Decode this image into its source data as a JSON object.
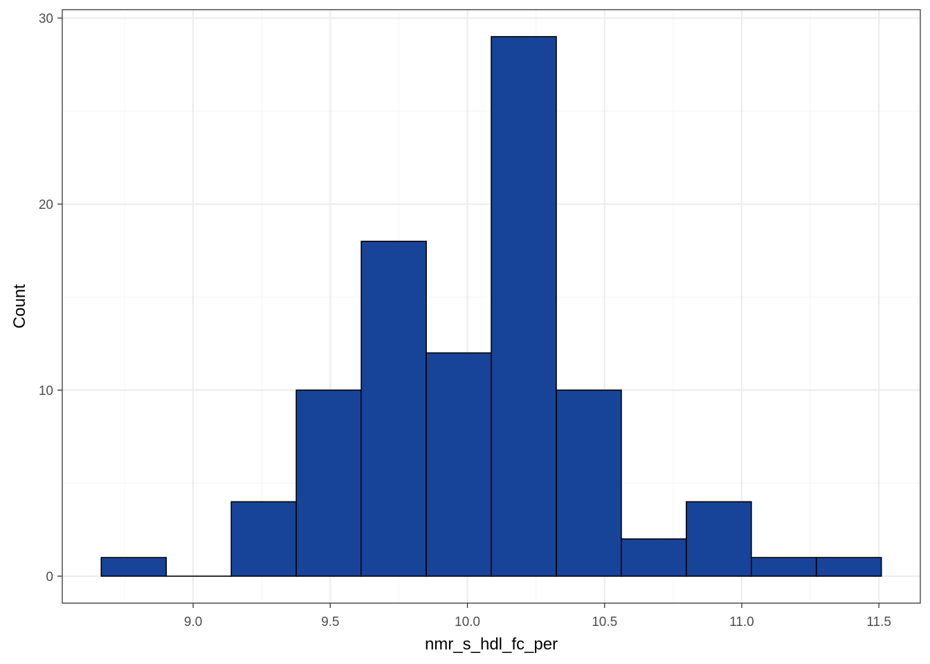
{
  "chart_data": {
    "type": "bar",
    "subtype": "histogram",
    "title": "",
    "xlabel": "nmr_s_hdl_fc_per",
    "ylabel": "Count",
    "bins": [
      {
        "x0": 8.665,
        "x1": 8.902,
        "count": 1
      },
      {
        "x0": 8.902,
        "x1": 9.139,
        "count": 0
      },
      {
        "x0": 9.139,
        "x1": 9.376,
        "count": 4
      },
      {
        "x0": 9.376,
        "x1": 9.613,
        "count": 10
      },
      {
        "x0": 9.613,
        "x1": 9.85,
        "count": 18
      },
      {
        "x0": 9.85,
        "x1": 10.087,
        "count": 12
      },
      {
        "x0": 10.087,
        "x1": 10.324,
        "count": 29
      },
      {
        "x0": 10.324,
        "x1": 10.561,
        "count": 10
      },
      {
        "x0": 10.561,
        "x1": 10.798,
        "count": 2
      },
      {
        "x0": 10.798,
        "x1": 11.035,
        "count": 4
      },
      {
        "x0": 11.035,
        "x1": 11.272,
        "count": 1
      },
      {
        "x0": 11.272,
        "x1": 11.509,
        "count": 1
      }
    ],
    "xlim": [
      8.523,
      11.651
    ],
    "ylim": [
      -1.45,
      30.45
    ],
    "x_ticks": [
      9.0,
      9.5,
      10.0,
      10.5,
      11.0,
      11.5
    ],
    "x_tick_labels": [
      "9.0",
      "9.5",
      "10.0",
      "10.5",
      "11.0",
      "11.5"
    ],
    "x_minor_ticks": [
      8.75,
      9.25,
      9.75,
      10.25,
      10.75,
      11.25
    ],
    "y_ticks": [
      0,
      10,
      20,
      30
    ],
    "y_tick_labels": [
      "0",
      "10",
      "20",
      "30"
    ],
    "y_minor_ticks": [
      5,
      15,
      25
    ],
    "grid": true,
    "bar_fill": "#174499",
    "bar_stroke": "#000000",
    "panel_border": "#333333",
    "grid_major_color": "#ebebeb",
    "grid_minor_color": "#f5f5f5",
    "legend": "none"
  }
}
